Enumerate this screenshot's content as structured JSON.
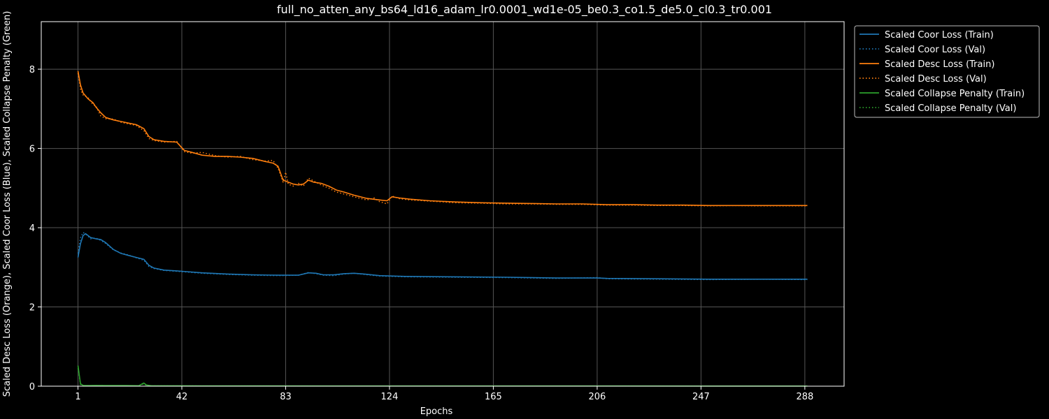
{
  "chart_data": {
    "type": "line",
    "title": "full_no_atten_any_bs64_ld16_adam_lr0.0001_wd1e-05_be0.3_co1.5_de5.0_cl0.3_tr0.001",
    "xlabel": "Epochs",
    "ylabel": "Scaled Desc Loss (Orange), Scaled Coor Loss (Blue), Scaled Collapse Penalty (Green)",
    "xlim": [
      -13.5,
      303.5
    ],
    "ylim": [
      0,
      9.2
    ],
    "xticks": [
      1,
      42,
      83,
      124,
      165,
      206,
      247,
      288
    ],
    "yticks": [
      0,
      2,
      4,
      6,
      8
    ],
    "grid": true,
    "legend_position": "outside-right-top",
    "background": "#000000",
    "series": [
      {
        "name": "Scaled Coor Loss (Train)",
        "color": "#1f77b4",
        "style": "solid",
        "points": [
          [
            1,
            3.25
          ],
          [
            2,
            3.6
          ],
          [
            3,
            3.8
          ],
          [
            4,
            3.85
          ],
          [
            5,
            3.8
          ],
          [
            6,
            3.75
          ],
          [
            8,
            3.72
          ],
          [
            10,
            3.7
          ],
          [
            12,
            3.62
          ],
          [
            15,
            3.45
          ],
          [
            18,
            3.35
          ],
          [
            21,
            3.3
          ],
          [
            24,
            3.25
          ],
          [
            27,
            3.2
          ],
          [
            29,
            3.05
          ],
          [
            31,
            2.98
          ],
          [
            35,
            2.93
          ],
          [
            40,
            2.91
          ],
          [
            50,
            2.86
          ],
          [
            60,
            2.83
          ],
          [
            70,
            2.81
          ],
          [
            80,
            2.8
          ],
          [
            88,
            2.8
          ],
          [
            92,
            2.86
          ],
          [
            95,
            2.85
          ],
          [
            98,
            2.81
          ],
          [
            102,
            2.81
          ],
          [
            106,
            2.84
          ],
          [
            110,
            2.85
          ],
          [
            114,
            2.83
          ],
          [
            120,
            2.79
          ],
          [
            130,
            2.77
          ],
          [
            150,
            2.76
          ],
          [
            170,
            2.75
          ],
          [
            190,
            2.73
          ],
          [
            206,
            2.73
          ],
          [
            210,
            2.72
          ],
          [
            230,
            2.71
          ],
          [
            250,
            2.7
          ],
          [
            270,
            2.7
          ],
          [
            289,
            2.7
          ]
        ]
      },
      {
        "name": "Scaled Coor Loss (Val)",
        "color": "#1f77b4",
        "style": "dotted",
        "points": [
          [
            1,
            3.35
          ],
          [
            2,
            3.75
          ],
          [
            3,
            3.88
          ],
          [
            4,
            3.84
          ],
          [
            6,
            3.72
          ],
          [
            8,
            3.74
          ],
          [
            10,
            3.68
          ],
          [
            12,
            3.6
          ],
          [
            15,
            3.44
          ],
          [
            18,
            3.36
          ],
          [
            21,
            3.31
          ],
          [
            24,
            3.24
          ],
          [
            27,
            3.18
          ],
          [
            29,
            3.02
          ],
          [
            31,
            2.97
          ],
          [
            35,
            2.92
          ],
          [
            40,
            2.9
          ],
          [
            50,
            2.85
          ],
          [
            60,
            2.82
          ],
          [
            70,
            2.8
          ],
          [
            80,
            2.79
          ],
          [
            88,
            2.8
          ],
          [
            92,
            2.87
          ],
          [
            95,
            2.84
          ],
          [
            98,
            2.8
          ],
          [
            102,
            2.79
          ],
          [
            106,
            2.83
          ],
          [
            110,
            2.85
          ],
          [
            114,
            2.82
          ],
          [
            120,
            2.78
          ],
          [
            130,
            2.76
          ],
          [
            150,
            2.75
          ],
          [
            170,
            2.74
          ],
          [
            190,
            2.72
          ],
          [
            206,
            2.74
          ],
          [
            210,
            2.71
          ],
          [
            230,
            2.7
          ],
          [
            250,
            2.69
          ],
          [
            270,
            2.7
          ],
          [
            289,
            2.69
          ]
        ]
      },
      {
        "name": "Scaled Desc Loss (Train)",
        "color": "#ff7f0e",
        "style": "solid",
        "points": [
          [
            1,
            7.95
          ],
          [
            2,
            7.6
          ],
          [
            3,
            7.4
          ],
          [
            5,
            7.25
          ],
          [
            7,
            7.15
          ],
          [
            8,
            7.05
          ],
          [
            10,
            6.9
          ],
          [
            12,
            6.78
          ],
          [
            15,
            6.72
          ],
          [
            18,
            6.68
          ],
          [
            21,
            6.64
          ],
          [
            24,
            6.6
          ],
          [
            27,
            6.5
          ],
          [
            29,
            6.3
          ],
          [
            31,
            6.22
          ],
          [
            35,
            6.18
          ],
          [
            40,
            6.16
          ],
          [
            43,
            5.95
          ],
          [
            46,
            5.9
          ],
          [
            50,
            5.83
          ],
          [
            55,
            5.8
          ],
          [
            60,
            5.8
          ],
          [
            65,
            5.78
          ],
          [
            70,
            5.75
          ],
          [
            75,
            5.67
          ],
          [
            78,
            5.63
          ],
          [
            80,
            5.55
          ],
          [
            82,
            5.2
          ],
          [
            84,
            5.15
          ],
          [
            86,
            5.1
          ],
          [
            88,
            5.08
          ],
          [
            90,
            5.1
          ],
          [
            92,
            5.2
          ],
          [
            94,
            5.15
          ],
          [
            97,
            5.12
          ],
          [
            100,
            5.05
          ],
          [
            103,
            4.95
          ],
          [
            106,
            4.9
          ],
          [
            110,
            4.82
          ],
          [
            115,
            4.74
          ],
          [
            120,
            4.7
          ],
          [
            123,
            4.68
          ],
          [
            125,
            4.78
          ],
          [
            128,
            4.75
          ],
          [
            132,
            4.72
          ],
          [
            140,
            4.68
          ],
          [
            150,
            4.65
          ],
          [
            160,
            4.63
          ],
          [
            170,
            4.62
          ],
          [
            180,
            4.61
          ],
          [
            190,
            4.6
          ],
          [
            200,
            4.6
          ],
          [
            210,
            4.58
          ],
          [
            220,
            4.58
          ],
          [
            230,
            4.57
          ],
          [
            240,
            4.57
          ],
          [
            250,
            4.56
          ],
          [
            260,
            4.56
          ],
          [
            270,
            4.56
          ],
          [
            280,
            4.56
          ],
          [
            289,
            4.56
          ]
        ]
      },
      {
        "name": "Scaled Desc Loss (Val)",
        "color": "#ff7f0e",
        "style": "dotted",
        "points": [
          [
            1,
            7.9
          ],
          [
            2,
            7.5
          ],
          [
            3,
            7.35
          ],
          [
            5,
            7.28
          ],
          [
            7,
            7.1
          ],
          [
            8,
            7.08
          ],
          [
            10,
            6.82
          ],
          [
            12,
            6.75
          ],
          [
            15,
            6.74
          ],
          [
            18,
            6.66
          ],
          [
            21,
            6.62
          ],
          [
            24,
            6.58
          ],
          [
            27,
            6.45
          ],
          [
            29,
            6.25
          ],
          [
            31,
            6.2
          ],
          [
            35,
            6.16
          ],
          [
            40,
            6.18
          ],
          [
            43,
            5.92
          ],
          [
            46,
            5.88
          ],
          [
            50,
            5.9
          ],
          [
            55,
            5.82
          ],
          [
            60,
            5.78
          ],
          [
            65,
            5.8
          ],
          [
            70,
            5.72
          ],
          [
            75,
            5.68
          ],
          [
            78,
            5.7
          ],
          [
            80,
            5.5
          ],
          [
            82,
            5.15
          ],
          [
            83,
            5.4
          ],
          [
            84,
            5.1
          ],
          [
            86,
            5.05
          ],
          [
            88,
            5.12
          ],
          [
            90,
            5.05
          ],
          [
            92,
            5.25
          ],
          [
            94,
            5.18
          ],
          [
            97,
            5.08
          ],
          [
            100,
            5.0
          ],
          [
            103,
            4.9
          ],
          [
            106,
            4.85
          ],
          [
            110,
            4.78
          ],
          [
            115,
            4.7
          ],
          [
            118,
            4.75
          ],
          [
            120,
            4.66
          ],
          [
            123,
            4.6
          ],
          [
            125,
            4.8
          ],
          [
            128,
            4.73
          ],
          [
            132,
            4.7
          ],
          [
            140,
            4.67
          ],
          [
            150,
            4.63
          ],
          [
            160,
            4.62
          ],
          [
            170,
            4.6
          ],
          [
            180,
            4.6
          ],
          [
            190,
            4.59
          ],
          [
            200,
            4.59
          ],
          [
            210,
            4.57
          ],
          [
            220,
            4.57
          ],
          [
            230,
            4.56
          ],
          [
            240,
            4.56
          ],
          [
            250,
            4.55
          ],
          [
            260,
            4.56
          ],
          [
            270,
            4.55
          ],
          [
            280,
            4.55
          ],
          [
            289,
            4.55
          ]
        ]
      },
      {
        "name": "Scaled Collapse Penalty (Train)",
        "color": "#2ca02c",
        "style": "solid",
        "points": [
          [
            1,
            0.52
          ],
          [
            2,
            0.06
          ],
          [
            3,
            0.02
          ],
          [
            5,
            0.015
          ],
          [
            8,
            0.02
          ],
          [
            12,
            0.018
          ],
          [
            20,
            0.015
          ],
          [
            25,
            0.012
          ],
          [
            27,
            0.08
          ],
          [
            28,
            0.03
          ],
          [
            30,
            0.01
          ],
          [
            50,
            0.008
          ],
          [
            100,
            0.006
          ],
          [
            150,
            0.005
          ],
          [
            200,
            0.005
          ],
          [
            250,
            0.004
          ],
          [
            289,
            0.004
          ]
        ]
      },
      {
        "name": "Scaled Collapse Penalty (Val)",
        "color": "#2ca02c",
        "style": "dotted",
        "points": [
          [
            1,
            0.45
          ],
          [
            2,
            0.04
          ],
          [
            3,
            0.015
          ],
          [
            5,
            0.012
          ],
          [
            8,
            0.016
          ],
          [
            12,
            0.014
          ],
          [
            20,
            0.012
          ],
          [
            25,
            0.01
          ],
          [
            27,
            0.06
          ],
          [
            28,
            0.02
          ],
          [
            30,
            0.008
          ],
          [
            50,
            0.006
          ],
          [
            100,
            0.005
          ],
          [
            150,
            0.004
          ],
          [
            200,
            0.004
          ],
          [
            250,
            0.003
          ],
          [
            289,
            0.003
          ]
        ]
      }
    ]
  }
}
